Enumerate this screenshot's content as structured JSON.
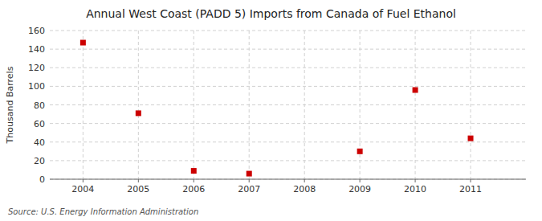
{
  "chart_data": {
    "type": "scatter",
    "title": "Annual West Coast (PADD 5) Imports from Canada of Fuel Ethanol",
    "ylabel": "Thousand Barrels",
    "annotations": [
      "Source: U.S. Energy Information Administration"
    ],
    "x": [
      2004,
      2005,
      2006,
      2007,
      2009,
      2010,
      2011
    ],
    "values": [
      147,
      71,
      9,
      6,
      30,
      96,
      44
    ],
    "xlim": [
      2003.4,
      2012.0
    ],
    "ylim": [
      0,
      160
    ],
    "xticks": [
      2004,
      2005,
      2006,
      2007,
      2008,
      2009,
      2010,
      2011
    ],
    "yticks": [
      0,
      20,
      40,
      60,
      80,
      100,
      120,
      140,
      160
    ],
    "color": "#cc0000",
    "marker": "square",
    "grid": true
  }
}
